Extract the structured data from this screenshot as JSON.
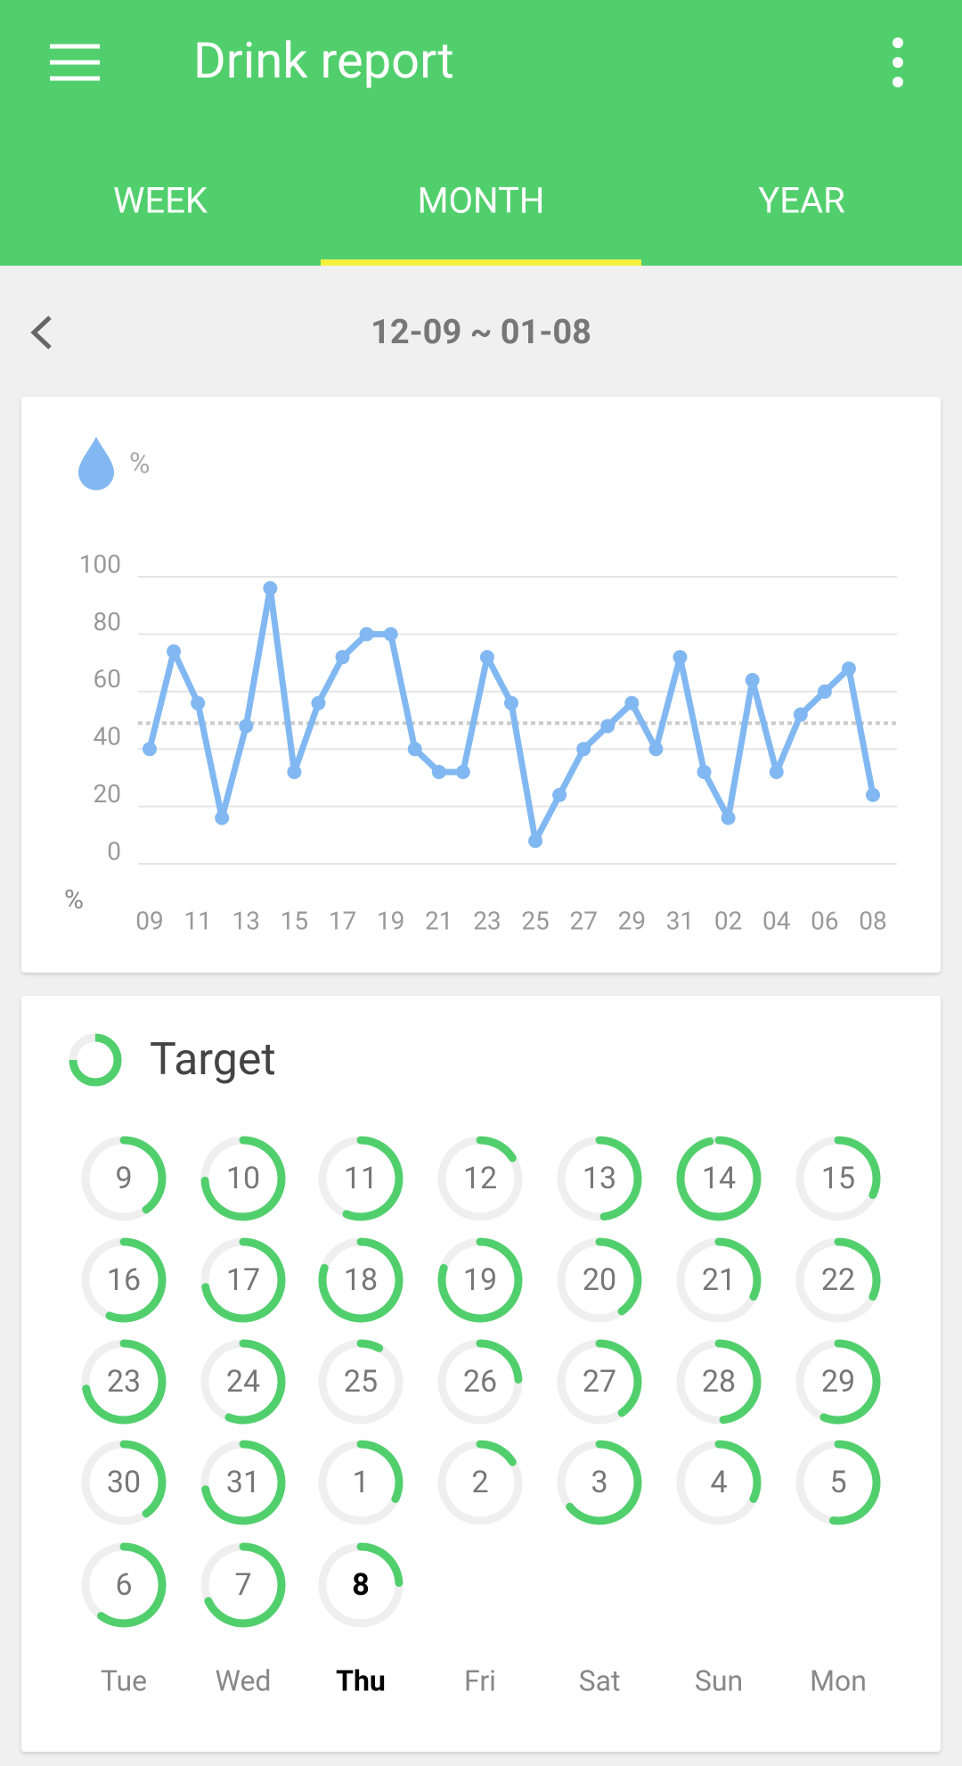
{
  "header": {
    "title": "Drink report",
    "tabs": [
      "WEEK",
      "MONTH",
      "YEAR"
    ]
  },
  "date_range": "12-09 ~ 01-08",
  "chart_data": {
    "type": "line",
    "y_unit": "%",
    "x_unit": "%",
    "categories": [
      "09",
      null,
      "11",
      null,
      "13",
      null,
      "15",
      null,
      "17",
      null,
      "19",
      null,
      "21",
      null,
      "23",
      null,
      "25",
      null,
      "27",
      null,
      "29",
      null,
      "31",
      null,
      "02",
      null,
      "04",
      null,
      "06",
      null,
      "08"
    ],
    "series": [
      {
        "name": "Drink",
        "color": "#82b8f2",
        "values": [
          40,
          74,
          56,
          16,
          48,
          96,
          32,
          56,
          72,
          80,
          80,
          40,
          32,
          32,
          72,
          56,
          8,
          24,
          40,
          48,
          56,
          40,
          72,
          32,
          16,
          64,
          32,
          52,
          60,
          68,
          24
        ]
      }
    ],
    "average": 49,
    "ylim": [
      0,
      100
    ],
    "yticks": [
      0,
      20,
      40,
      60,
      80,
      100
    ],
    "grid": true
  },
  "target": {
    "title": "Target",
    "color": "#52cf6d",
    "days": [
      {
        "label": 9,
        "value": 40
      },
      {
        "label": 10,
        "value": 74
      },
      {
        "label": 11,
        "value": 56
      },
      {
        "label": 12,
        "value": 16
      },
      {
        "label": 13,
        "value": 48
      },
      {
        "label": 14,
        "value": 96
      },
      {
        "label": 15,
        "value": 32
      },
      {
        "label": 16,
        "value": 56
      },
      {
        "label": 17,
        "value": 72
      },
      {
        "label": 18,
        "value": 80
      },
      {
        "label": 19,
        "value": 80
      },
      {
        "label": 20,
        "value": 40
      },
      {
        "label": 21,
        "value": 32
      },
      {
        "label": 22,
        "value": 32
      },
      {
        "label": 23,
        "value": 72
      },
      {
        "label": 24,
        "value": 56
      },
      {
        "label": 25,
        "value": 8
      },
      {
        "label": 26,
        "value": 24
      },
      {
        "label": 27,
        "value": 40
      },
      {
        "label": 28,
        "value": 48
      },
      {
        "label": 29,
        "value": 56
      },
      {
        "label": 30,
        "value": 40
      },
      {
        "label": 31,
        "value": 72
      },
      {
        "label": 1,
        "value": 32
      },
      {
        "label": 2,
        "value": 16
      },
      {
        "label": 3,
        "value": 64
      },
      {
        "label": 4,
        "value": 32
      },
      {
        "label": 5,
        "value": 52
      },
      {
        "label": 6,
        "value": 60
      },
      {
        "label": 7,
        "value": 68
      },
      {
        "label": 8,
        "value": 24,
        "today": true
      }
    ],
    "weekdays": [
      "Tue",
      "Wed",
      "Thu",
      "Fri",
      "Sat",
      "Sun",
      "Mon"
    ]
  }
}
